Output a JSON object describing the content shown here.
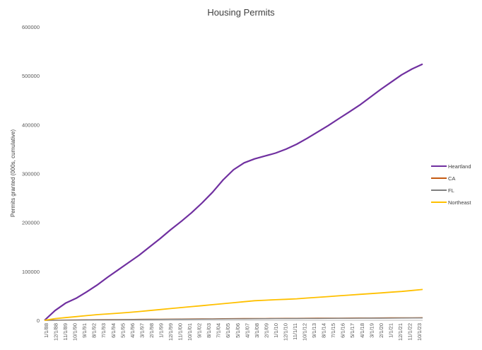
{
  "chart_data": {
    "type": "line",
    "title": "Housing Permits",
    "xlabel": "",
    "ylabel": "Permits granted (000s, cumulative)",
    "ylim": [
      0,
      600000
    ],
    "yticks": [
      "0",
      "100000",
      "200000",
      "300000",
      "400000",
      "500000",
      "600000"
    ],
    "grid": false,
    "legend_position": "right",
    "x_tick_labels": [
      "1/1/88",
      "12/1/88",
      "11/1/89",
      "10/1/90",
      "9/1/91",
      "8/1/92",
      "7/1/93",
      "6/1/94",
      "5/1/95",
      "4/1/96",
      "3/1/97",
      "2/1/98",
      "1/1/99",
      "12/1/99",
      "11/1/00",
      "10/1/01",
      "9/1/02",
      "8/1/03",
      "7/1/04",
      "6/1/05",
      "5/1/06",
      "4/1/07",
      "3/1/08",
      "2/1/09",
      "1/1/10",
      "12/1/10",
      "11/1/11",
      "10/1/12",
      "9/1/13",
      "8/1/14",
      "7/1/15",
      "6/1/16",
      "5/1/17",
      "4/1/18",
      "3/1/19",
      "2/1/20",
      "1/1/21",
      "12/1/21",
      "11/1/22",
      "10/1/23"
    ],
    "x": [
      "1/1/88",
      "1/1/89",
      "1/1/90",
      "1/1/91",
      "1/1/92",
      "1/1/93",
      "1/1/94",
      "1/1/95",
      "1/1/96",
      "1/1/97",
      "1/1/98",
      "1/1/99",
      "1/1/00",
      "1/1/01",
      "1/1/02",
      "1/1/03",
      "1/1/04",
      "1/1/05",
      "1/1/06",
      "1/1/07",
      "1/1/08",
      "1/1/09",
      "1/1/10",
      "1/1/11",
      "1/1/12",
      "1/1/13",
      "1/1/14",
      "1/1/15",
      "1/1/16",
      "1/1/17",
      "1/1/18",
      "1/1/19",
      "1/1/20",
      "1/1/21",
      "1/1/22",
      "1/1/23",
      "1/1/24"
    ],
    "series": [
      {
        "name": "Heartland",
        "color": "#7030a0",
        "values": [
          0,
          20000,
          35000,
          45000,
          58000,
          72000,
          88000,
          103000,
          118000,
          133000,
          150000,
          167000,
          185000,
          202000,
          220000,
          240000,
          262000,
          287000,
          308000,
          322000,
          330000,
          336000,
          342000,
          350000,
          360000,
          372000,
          385000,
          398000,
          412000,
          426000,
          440000,
          456000,
          472000,
          487000,
          502000,
          514000,
          524000
        ]
      },
      {
        "name": "CA",
        "color": "#c55a11",
        "values": [
          0,
          300,
          600,
          900,
          1100,
          1300,
          1500,
          1600,
          1800,
          2000,
          2100,
          2300,
          2400,
          2600,
          2800,
          3000,
          3100,
          3300,
          3500,
          3600,
          3700,
          3800,
          3900,
          4000,
          4100,
          4200,
          4300,
          4400,
          4500,
          4600,
          4700,
          4800,
          4900,
          5000,
          5100,
          5200,
          5400
        ]
      },
      {
        "name": "FL",
        "color": "#808080",
        "values": [
          0,
          200,
          400,
          600,
          800,
          1000,
          1100,
          1300,
          1400,
          1600,
          1700,
          1900,
          2000,
          2100,
          2300,
          2400,
          2600,
          2800,
          3000,
          3100,
          3200,
          3300,
          3400,
          3500,
          3600,
          3700,
          3800,
          3900,
          4000,
          4100,
          4200,
          4300,
          4400,
          4500,
          4600,
          4700,
          4800
        ]
      },
      {
        "name": "Northeast",
        "color": "#ffc000",
        "values": [
          0,
          3500,
          5500,
          7500,
          9500,
          11500,
          13000,
          14500,
          16000,
          18000,
          20000,
          22000,
          24000,
          26000,
          28000,
          30000,
          32000,
          34000,
          36000,
          38000,
          40000,
          41000,
          42000,
          43000,
          44000,
          45500,
          47000,
          48500,
          50000,
          51500,
          53000,
          54500,
          56000,
          57500,
          59000,
          61000,
          63000
        ]
      }
    ]
  }
}
